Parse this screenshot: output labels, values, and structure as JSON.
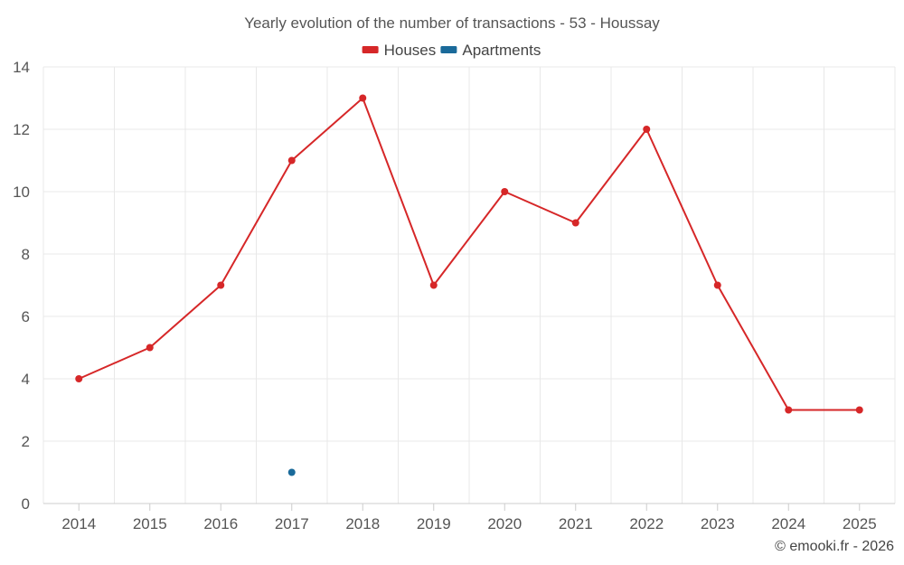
{
  "chart_data": {
    "type": "line",
    "title": "Yearly evolution of the number of transactions - 53 - Houssay",
    "xlabel": "",
    "ylabel": "",
    "categories": [
      "2014",
      "2015",
      "2016",
      "2017",
      "2018",
      "2019",
      "2020",
      "2021",
      "2022",
      "2023",
      "2024",
      "2025"
    ],
    "ylim": [
      0,
      14
    ],
    "yticks": [
      0,
      2,
      4,
      6,
      8,
      10,
      12,
      14
    ],
    "grid": true,
    "legend_position": "top-center",
    "series": [
      {
        "name": "Houses",
        "color": "#d62728",
        "values": [
          4,
          5,
          7,
          11,
          13,
          7,
          10,
          9,
          12,
          7,
          3,
          3
        ]
      },
      {
        "name": "Apartments",
        "color": "#1a6a9a",
        "values": [
          null,
          null,
          null,
          1,
          null,
          null,
          null,
          null,
          null,
          null,
          null,
          null
        ]
      }
    ]
  },
  "credit": "© emooki.fr - 2026"
}
